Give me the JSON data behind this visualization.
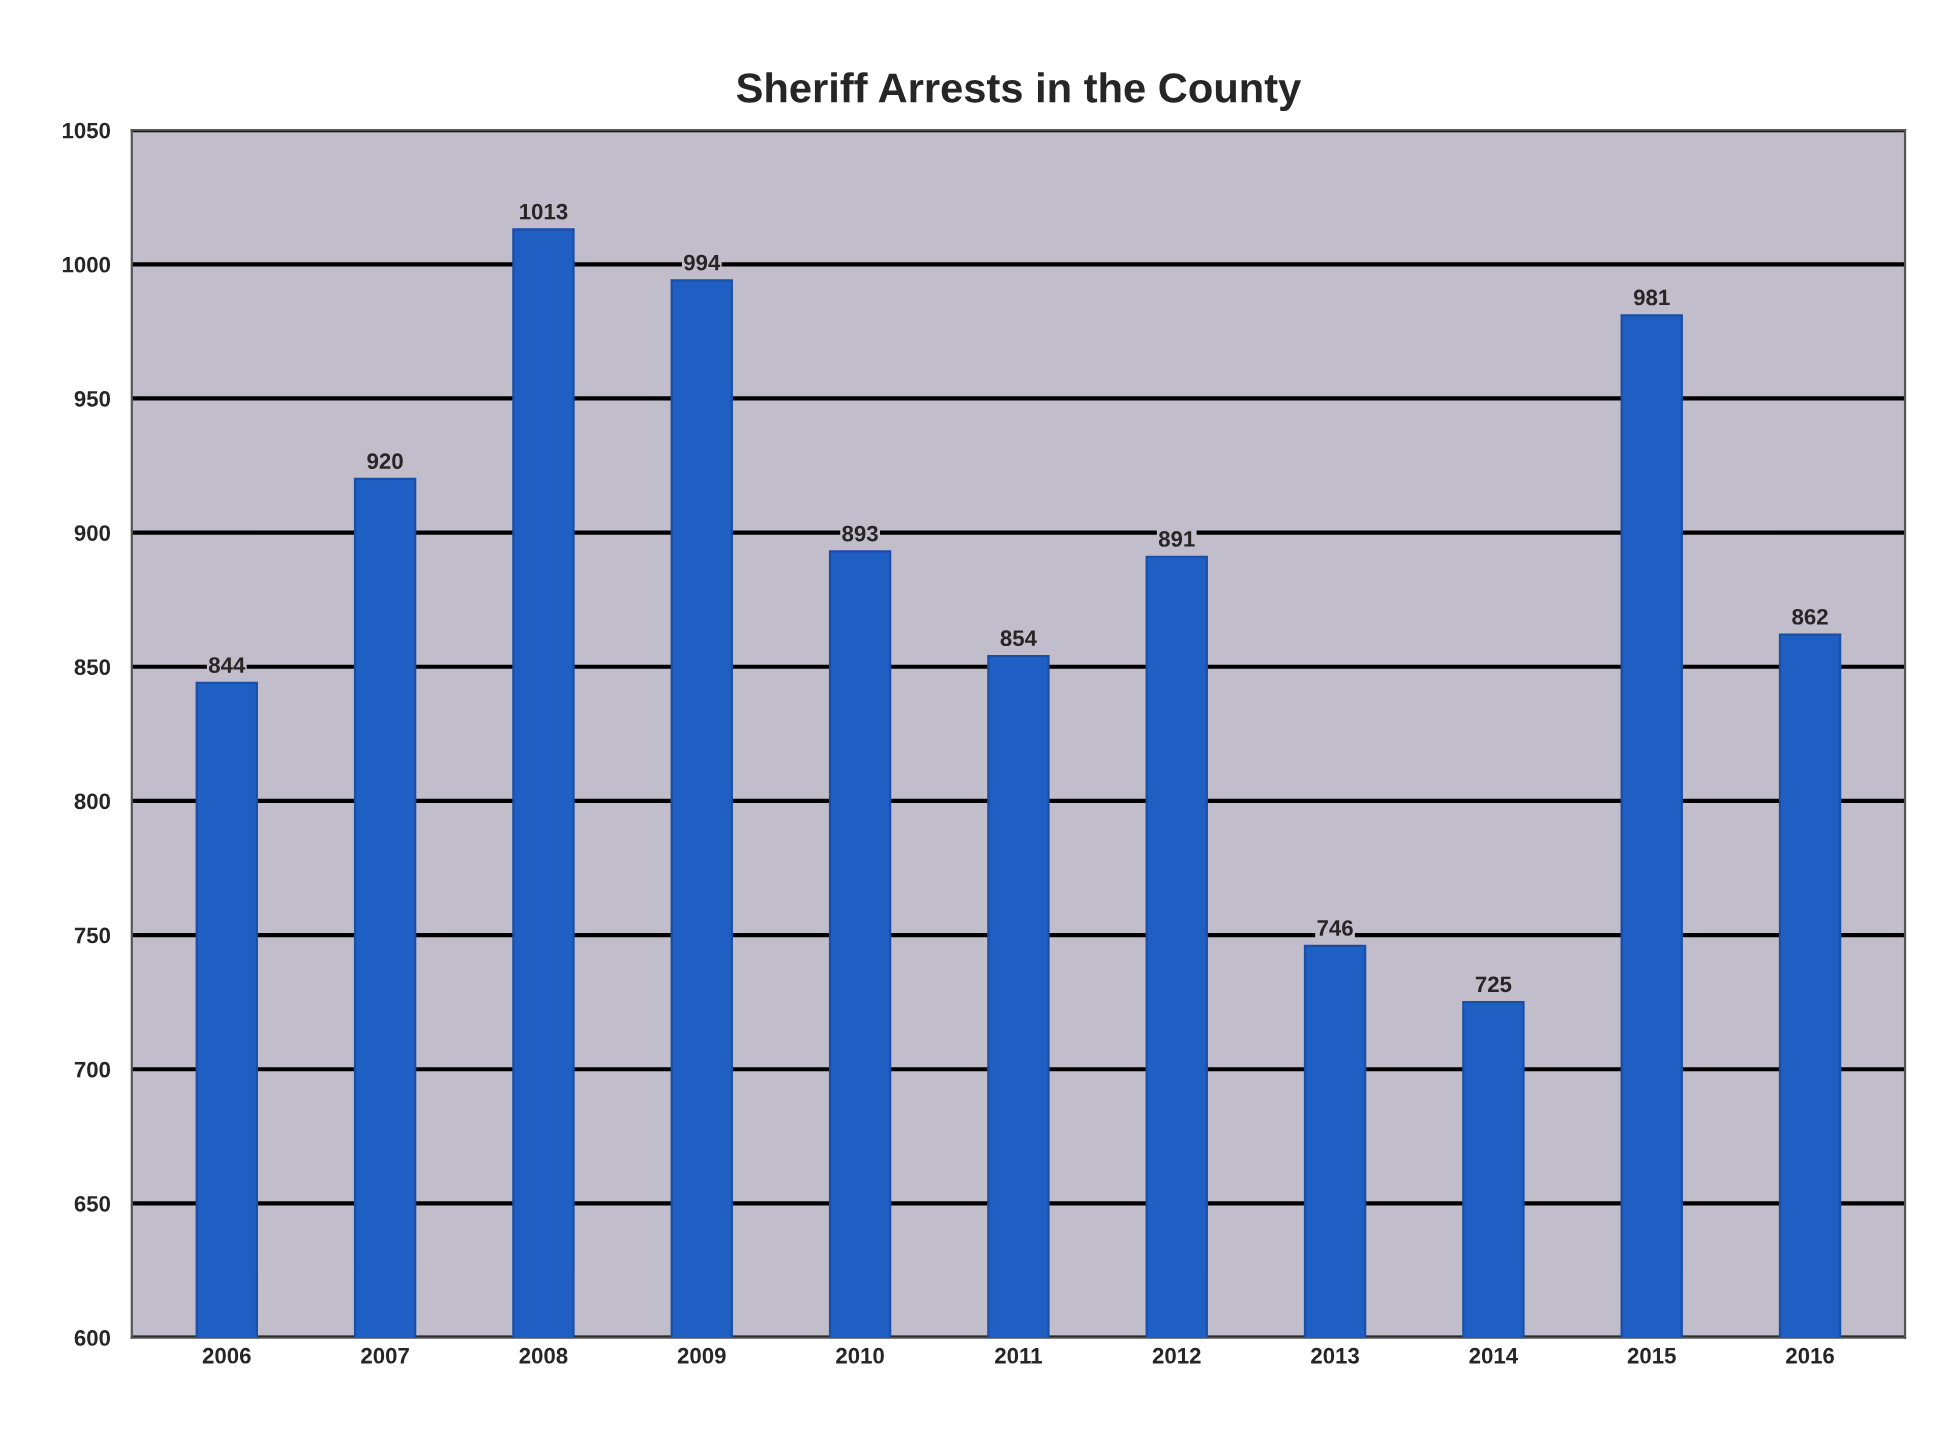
{
  "chart_data": {
    "type": "bar",
    "title": "Sheriff Arrests in the County",
    "categories": [
      "2006",
      "2007",
      "2008",
      "2009",
      "2010",
      "2011",
      "2012",
      "2013",
      "2014",
      "2015",
      "2016"
    ],
    "values": [
      844,
      920,
      1013,
      994,
      893,
      854,
      891,
      746,
      725,
      981,
      862
    ],
    "color": "#1f5fc4",
    "ylim": [
      600,
      1050
    ],
    "yticks": [
      600,
      650,
      700,
      750,
      800,
      850,
      900,
      950,
      1000,
      1050
    ],
    "grid": "y",
    "data_labels": true
  }
}
